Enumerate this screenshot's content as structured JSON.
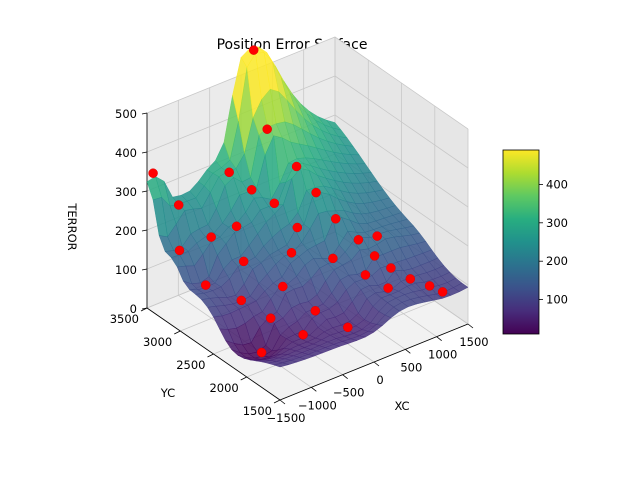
{
  "chart_data": {
    "type": "surface3d",
    "title": "Position Error Surface",
    "xlabel": "XC",
    "ylabel": "YC",
    "zlabel": "TERROR",
    "xlim": [
      -1500,
      1500
    ],
    "ylim": [
      1500,
      3500
    ],
    "zlim": [
      0,
      500
    ],
    "x_ticks": [
      "−1500",
      "−1000",
      "−500",
      "0",
      "500",
      "1000",
      "1500"
    ],
    "y_ticks": [
      "1500",
      "2000",
      "2500",
      "3000",
      "3500"
    ],
    "z_ticks": [
      "0",
      "100",
      "200",
      "300",
      "400",
      "500"
    ],
    "colorbar": {
      "colormap": "viridis",
      "range": [
        10,
        490
      ],
      "ticks": [
        "100",
        "200",
        "300",
        "400"
      ]
    },
    "grid": true,
    "points": [
      {
        "x": -1350,
        "y": 3550,
        "z": 330
      },
      {
        "x": -1300,
        "y": 3200,
        "z": 170
      },
      {
        "x": -1100,
        "y": 3400,
        "z": 250
      },
      {
        "x": -900,
        "y": 3100,
        "z": 190
      },
      {
        "x": -700,
        "y": 2800,
        "z": 150
      },
      {
        "x": -500,
        "y": 2400,
        "z": 120
      },
      {
        "x": -300,
        "y": 2100,
        "z": 80
      },
      {
        "x": -100,
        "y": 1800,
        "z": 60
      },
      {
        "x": -1200,
        "y": 2900,
        "z": 110
      },
      {
        "x": -950,
        "y": 2600,
        "z": 90
      },
      {
        "x": -800,
        "y": 2300,
        "z": 70
      },
      {
        "x": -600,
        "y": 2000,
        "z": 50
      },
      {
        "x": -1050,
        "y": 2200,
        "z": 10
      },
      {
        "x": -400,
        "y": 3300,
        "z": 300
      },
      {
        "x": -200,
        "y": 3150,
        "z": 260
      },
      {
        "x": 0,
        "y": 3000,
        "z": 230
      },
      {
        "x": 150,
        "y": 3450,
        "z": 560
      },
      {
        "x": 100,
        "y": 3200,
        "z": 390
      },
      {
        "x": 250,
        "y": 2900,
        "z": 320
      },
      {
        "x": 350,
        "y": 2700,
        "z": 270
      },
      {
        "x": 450,
        "y": 2500,
        "z": 220
      },
      {
        "x": 600,
        "y": 2300,
        "z": 180
      },
      {
        "x": 700,
        "y": 2150,
        "z": 150
      },
      {
        "x": 800,
        "y": 2000,
        "z": 130
      },
      {
        "x": 950,
        "y": 1850,
        "z": 110
      },
      {
        "x": 1100,
        "y": 1700,
        "z": 100
      },
      {
        "x": 1200,
        "y": 1600,
        "z": 90
      },
      {
        "x": 500,
        "y": 2100,
        "z": 120
      },
      {
        "x": 650,
        "y": 1900,
        "z": 100
      },
      {
        "x": 300,
        "y": 2400,
        "z": 140
      },
      {
        "x": -150,
        "y": 2600,
        "z": 160
      },
      {
        "x": 50,
        "y": 2700,
        "z": 200
      },
      {
        "x": -600,
        "y": 3000,
        "z": 210
      },
      {
        "x": 900,
        "y": 2300,
        "z": 170
      }
    ]
  }
}
